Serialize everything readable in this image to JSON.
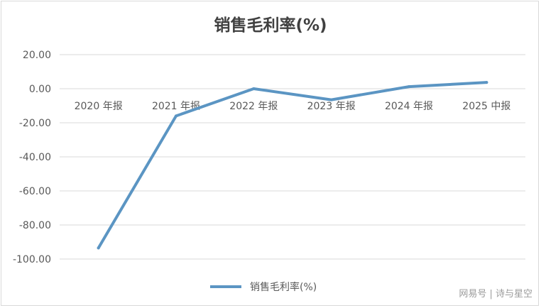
{
  "chart_data": {
    "type": "line",
    "title": "销售毛利率(%)",
    "categories": [
      "2020 年报",
      "2021 年报",
      "2022 年报",
      "2023 年报",
      "2024 年报",
      "2025 中报"
    ],
    "series": [
      {
        "name": "销售毛利率(%)",
        "values": [
          -93.5,
          -16.0,
          0.0,
          -6.5,
          1.2,
          3.7
        ],
        "color": "#5b95c3"
      }
    ],
    "yticks": [
      "20.00",
      "0.00",
      "-20.00",
      "-40.00",
      "-60.00",
      "-80.00",
      "-100.00"
    ],
    "ylim": [
      -100,
      20
    ],
    "grid": true,
    "legend": "bottom"
  },
  "watermark": "网易号 | 诗与星空"
}
